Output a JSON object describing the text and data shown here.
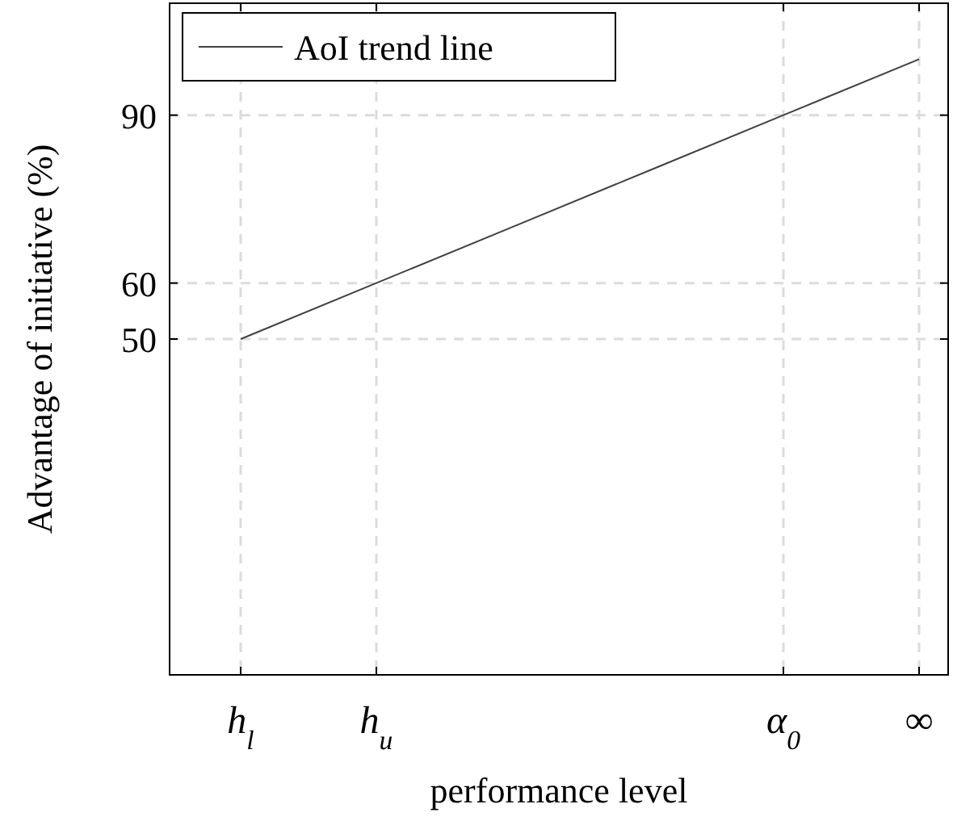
{
  "chart_data": {
    "type": "line",
    "xlabel": "performance level",
    "ylabel": "Advantage of initiative (%)",
    "categories": [
      "h$_{l}$",
      "h$_{u}$",
      null,
      null,
      "α$_{0}$",
      "∞"
    ],
    "series": [
      {
        "name": "AoI trend line",
        "color": "#404040",
        "values": [
          50,
          60,
          70,
          80,
          90,
          100
        ]
      }
    ],
    "ylim": [
      -10,
      110
    ],
    "yticks": [
      50,
      60,
      90
    ],
    "grid": true,
    "legend": "top left",
    "marker": "none",
    "line_style": "solid"
  }
}
